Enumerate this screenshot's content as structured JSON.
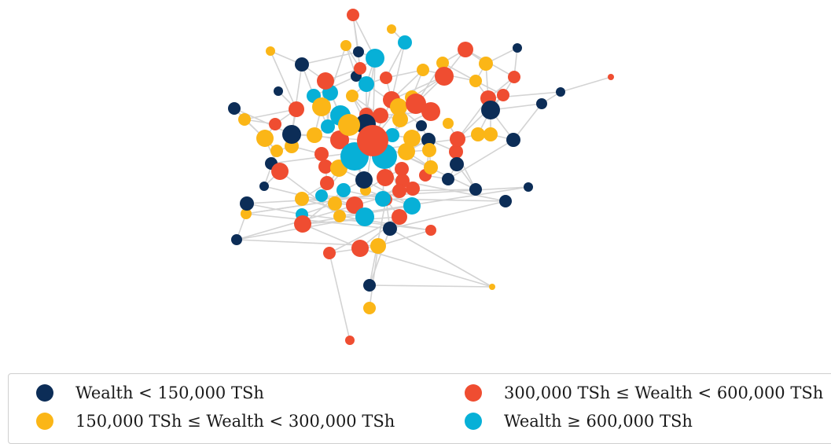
{
  "colors": {
    "low": "#0c2d57",
    "lower_mid": "#fbb617",
    "upper_mid": "#ef4d31",
    "high": "#07b0d7",
    "edge": "#d3d3d3"
  },
  "legend": [
    {
      "key": "low",
      "label": "Wealth < 150,000 TSh"
    },
    {
      "key": "upper_mid",
      "label": "300,000 TSh ≤ Wealth < 600,000 TSh"
    },
    {
      "key": "lower_mid",
      "label": "150,000 TSh ≤ Wealth < 300,000 TSh"
    },
    {
      "key": "high",
      "label": "Wealth ≥ 600,000 TSh"
    }
  ]
}
